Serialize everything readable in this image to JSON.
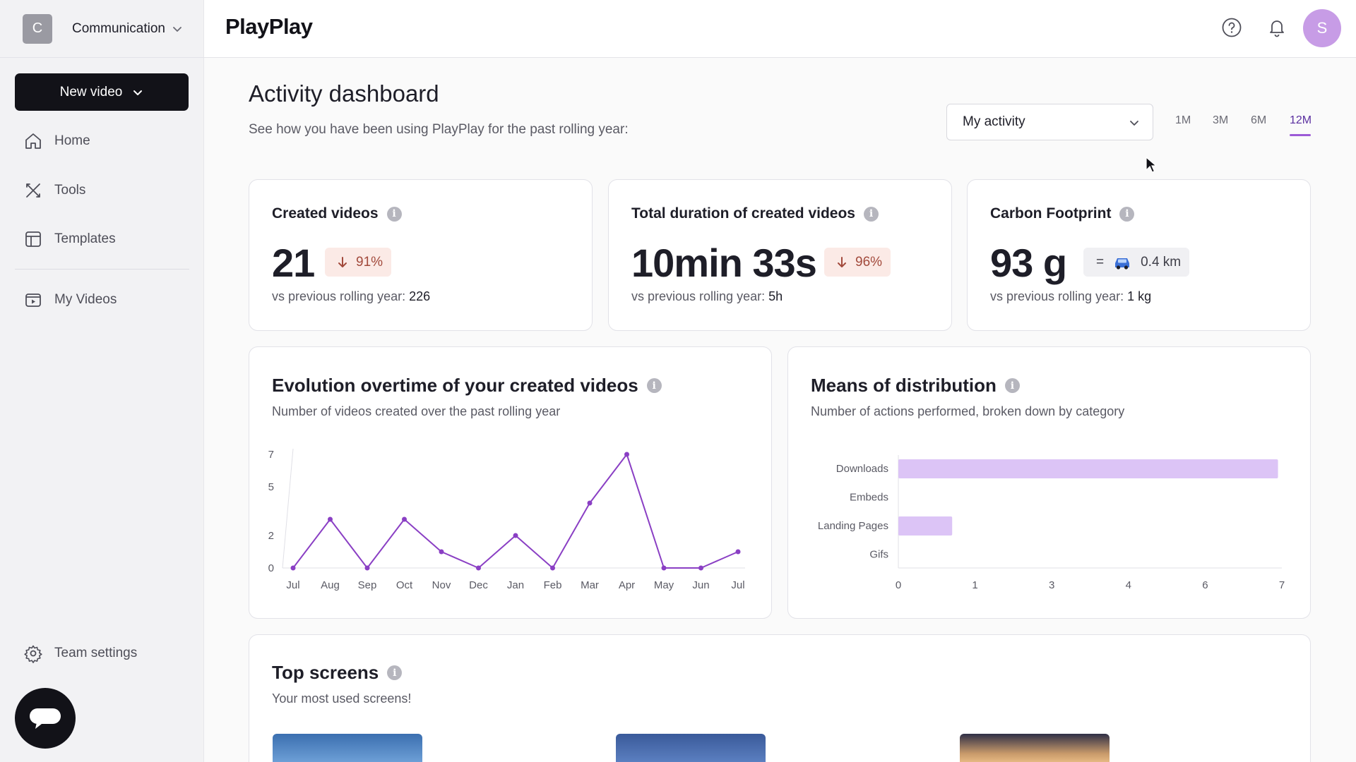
{
  "workspace": {
    "initial": "C",
    "name": "Communication"
  },
  "sidebar": {
    "new_video_label": "New video",
    "items": [
      {
        "label": "Home",
        "icon": "home-icon"
      },
      {
        "label": "Tools",
        "icon": "tools-icon"
      },
      {
        "label": "Templates",
        "icon": "templates-icon"
      },
      {
        "label": "My Videos",
        "icon": "my-videos-icon"
      }
    ],
    "team_settings_label": "Team settings"
  },
  "header": {
    "logo": "PlayPlay",
    "user_initial": "S"
  },
  "page": {
    "title": "Activity dashboard",
    "subtitle": "See how you have been using PlayPlay for the past rolling year:",
    "filter_value": "My activity",
    "periods": [
      "1M",
      "3M",
      "6M",
      "12M"
    ],
    "active_period": "12M"
  },
  "stats": {
    "created": {
      "title": "Created videos",
      "value": "21",
      "change": "91%",
      "sub_prefix": "vs previous rolling year:",
      "sub_value": "226"
    },
    "duration": {
      "title": "Total duration of created videos",
      "value": "10min 33s",
      "change": "96%",
      "sub_prefix": "vs previous rolling year:",
      "sub_value": "5h"
    },
    "carbon": {
      "title": "Carbon Footprint",
      "value": "93 g",
      "equiv_symbol": "=",
      "equiv_value": "0.4 km",
      "sub_prefix": "vs previous rolling year:",
      "sub_value": "1 kg"
    }
  },
  "evolution": {
    "title": "Evolution overtime of your created videos",
    "subtitle": "Number of videos created over the past rolling year"
  },
  "distribution": {
    "title": "Means of distribution",
    "subtitle": "Number of actions performed, broken down by category"
  },
  "top_screens": {
    "title": "Top screens",
    "subtitle": "Your most used screens!"
  },
  "colors": {
    "accent": "#9c5ad6",
    "line": "#8a3fc4",
    "bar": "#dcc4f6",
    "dark": "#121218"
  },
  "chart_data": [
    {
      "type": "line",
      "x": [
        "Jul",
        "Aug",
        "Sep",
        "Oct",
        "Nov",
        "Dec",
        "Jan",
        "Feb",
        "Mar",
        "Apr",
        "May",
        "Jun",
        "Jul"
      ],
      "series": [
        {
          "values": [
            0,
            3,
            0,
            3,
            1,
            0,
            2,
            0,
            4,
            7,
            0,
            0,
            1
          ]
        }
      ],
      "yticks": [
        "0",
        "2",
        "5",
        "7"
      ],
      "ylim": [
        0,
        7
      ],
      "grid": false
    },
    {
      "type": "bar",
      "orientation": "horizontal",
      "categories": [
        "Downloads",
        "Embeds",
        "Landing Pages",
        "Gifs"
      ],
      "values": [
        7,
        0,
        1,
        0
      ],
      "xticks": [
        "0",
        "1",
        "3",
        "4",
        "6",
        "7"
      ],
      "xlim": [
        0,
        7
      ],
      "grid": false
    }
  ]
}
